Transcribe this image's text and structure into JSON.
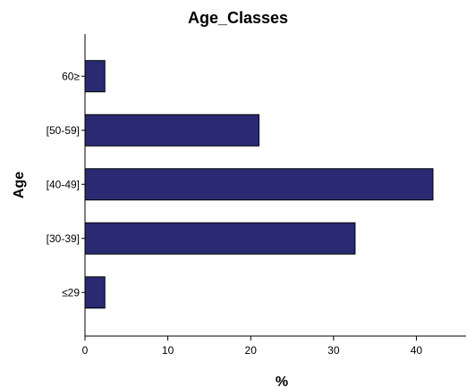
{
  "chart_data": {
    "type": "bar",
    "orientation": "horizontal",
    "title": "Age_Classes",
    "xlabel": "%",
    "ylabel": "Age",
    "categories": [
      "60≥",
      "[50-59]",
      "[40-49]",
      "[30-39]",
      "≤29"
    ],
    "values": [
      2.4,
      21.0,
      42.0,
      32.6,
      2.4
    ],
    "xlim": [
      0,
      46
    ],
    "xticks": [
      "0",
      "10",
      "20",
      "30",
      "40"
    ],
    "grid": false,
    "legend": "none",
    "bar_color": "#2a2a72"
  }
}
